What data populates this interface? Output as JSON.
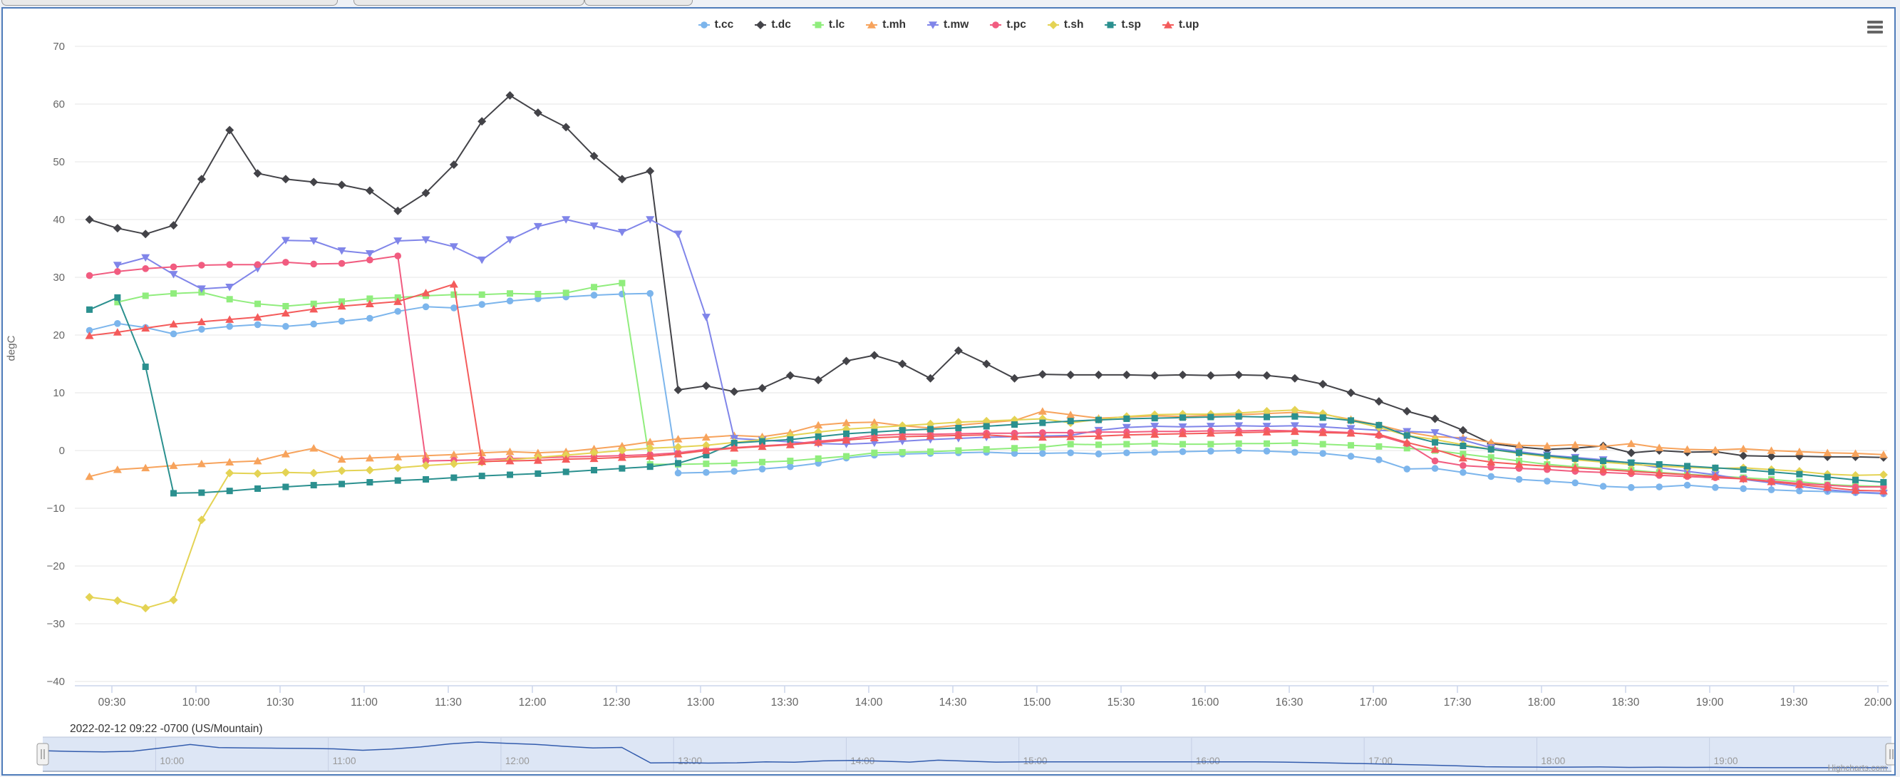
{
  "chart_data": {
    "type": "line",
    "title": "",
    "subtitle": "2022-02-12 09:22 -0700 (US/Mountain)",
    "ylabel": "degC",
    "xlabel": "",
    "credit": "Highcharts.com",
    "legend_position": "top",
    "grid": "horizontal",
    "ylim": [
      -43,
      73
    ],
    "yticks": [
      70,
      60,
      50,
      40,
      30,
      20,
      10,
      0,
      -10,
      -20,
      -30,
      -40
    ],
    "xticks": [
      "09:30",
      "10:00",
      "10:30",
      "11:00",
      "11:30",
      "12:00",
      "12:30",
      "13:00",
      "13:30",
      "14:00",
      "14:30",
      "15:00",
      "15:30",
      "16:00",
      "16:30",
      "17:00",
      "17:30",
      "18:00",
      "18:30",
      "19:00",
      "19:30",
      "20:00"
    ],
    "navigator_labels": [
      "10:00",
      "11:00",
      "12:00",
      "13:00",
      "14:00",
      "15:00",
      "16:00",
      "17:00",
      "18:00",
      "19:00"
    ],
    "x": [
      "09:22",
      "09:32",
      "09:42",
      "09:52",
      "10:02",
      "10:12",
      "10:22",
      "10:32",
      "10:42",
      "10:52",
      "11:02",
      "11:12",
      "11:22",
      "11:32",
      "11:42",
      "11:52",
      "12:02",
      "12:12",
      "12:22",
      "12:32",
      "12:42",
      "12:52",
      "13:02",
      "13:12",
      "13:22",
      "13:32",
      "13:42",
      "13:52",
      "14:02",
      "14:12",
      "14:22",
      "14:32",
      "14:42",
      "14:52",
      "15:02",
      "15:12",
      "15:22",
      "15:32",
      "15:42",
      "15:52",
      "16:02",
      "16:12",
      "16:22",
      "16:32",
      "16:42",
      "16:52",
      "17:02",
      "17:12",
      "17:22",
      "17:32",
      "17:42",
      "17:52",
      "18:02",
      "18:12",
      "18:22",
      "18:32",
      "18:42",
      "18:52",
      "19:02",
      "19:12",
      "19:22",
      "19:32",
      "19:42",
      "19:52",
      "20:02"
    ],
    "series": [
      {
        "name": "t.cc",
        "color": "#7cb5ec",
        "marker": "circle",
        "values": [
          20.8,
          22,
          21.3,
          20.2,
          21,
          21.5,
          21.8,
          21.5,
          21.9,
          22.4,
          22.9,
          24.1,
          24.9,
          24.7,
          25.3,
          25.9,
          26.3,
          26.6,
          26.9,
          27.1,
          27.2,
          -3.9,
          -3.8,
          -3.6,
          -3.2,
          -2.8,
          -2.2,
          -1.3,
          -0.8,
          -0.6,
          -0.5,
          -0.4,
          -0.3,
          -0.5,
          -0.5,
          -0.4,
          -0.6,
          -0.4,
          -0.3,
          -0.2,
          -0.1,
          0,
          -0.1,
          -0.3,
          -0.5,
          -1,
          -1.6,
          -3.2,
          -3.1,
          -3.8,
          -4.5,
          -5,
          -5.3,
          -5.6,
          -6.2,
          -6.4,
          -6.3,
          -6,
          -6.4,
          -6.6,
          -6.8,
          -7,
          -7.1,
          -7.3,
          -7.5
        ]
      },
      {
        "name": "t.dc",
        "color": "#434348",
        "marker": "diamond",
        "values": [
          40,
          38.5,
          37.5,
          39,
          47,
          55.5,
          48,
          47,
          46.5,
          46,
          45,
          41.5,
          44.6,
          49.5,
          57,
          61.5,
          58.5,
          56,
          51,
          47,
          48.4,
          10.5,
          11.2,
          10.2,
          10.8,
          13,
          12.2,
          15.5,
          16.5,
          15,
          12.5,
          17.3,
          15,
          12.5,
          13.2,
          13.1,
          13.1,
          13.1,
          13,
          13.1,
          13,
          13.1,
          13,
          12.5,
          11.5,
          10,
          8.5,
          6.8,
          5.5,
          3.5,
          1.2,
          0.6,
          0.2,
          0.4,
          0.8,
          -0.4,
          0,
          -0.3,
          -0.2,
          -0.9,
          -1,
          -1,
          -1.1,
          -1.1,
          -1.2
        ]
      },
      {
        "name": "t.lc",
        "color": "#90ed7d",
        "marker": "square",
        "values": [
          null,
          25.7,
          26.8,
          27.2,
          27.4,
          26.2,
          25.4,
          25,
          25.4,
          25.8,
          26.3,
          26.5,
          26.8,
          27,
          27,
          27.2,
          27.1,
          27.3,
          28.3,
          29,
          -2.4,
          -2.4,
          -2.3,
          -2.2,
          -2,
          -1.8,
          -1.4,
          -1,
          -0.4,
          -0.3,
          -0.2,
          0,
          0.2,
          0.4,
          0.6,
          1.1,
          1,
          1.1,
          1.2,
          1.1,
          1.1,
          1.2,
          1.2,
          1.3,
          1.1,
          0.9,
          0.7,
          0.4,
          0,
          -0.6,
          -1.2,
          -1.8,
          -2.4,
          -2.8,
          -3.1,
          -3.4,
          -3.8,
          -4.1,
          -4.4,
          -4.7,
          -5,
          -5.4,
          -5.9,
          -6.1,
          -6.2
        ]
      },
      {
        "name": "t.mh",
        "color": "#f7a35c",
        "marker": "triangle",
        "values": [
          -4.5,
          -3.3,
          -3,
          -2.6,
          -2.3,
          -2,
          -1.8,
          -0.6,
          0.4,
          -1.5,
          -1.3,
          -1.1,
          -0.9,
          -0.7,
          -0.4,
          -0.2,
          -0.4,
          -0.2,
          0.3,
          0.8,
          1.5,
          2,
          2.3,
          2.6,
          2.4,
          3.1,
          4.4,
          4.8,
          4.9,
          4.3,
          3.9,
          4.4,
          4.8,
          5.2,
          6.8,
          6.2,
          5.6,
          5.8,
          6,
          5.9,
          6.1,
          6.2,
          6.4,
          6.6,
          6.3,
          5.4,
          4.4,
          3.2,
          2.4,
          2.2,
          1.4,
          0.9,
          0.8,
          1,
          0.7,
          1.2,
          0.5,
          0.2,
          0.1,
          0.3,
          0,
          -0.2,
          -0.4,
          -0.5,
          -0.7
        ]
      },
      {
        "name": "t.mw",
        "color": "#8085e9",
        "marker": "triangle-down",
        "values": [
          null,
          32.1,
          33.4,
          30.5,
          28,
          28.3,
          31.5,
          36.4,
          36.3,
          34.6,
          34.1,
          36.3,
          36.5,
          35.3,
          33,
          36.5,
          38.8,
          40,
          38.9,
          37.8,
          40,
          37.5,
          23.1,
          2.1,
          1.8,
          1.5,
          1.2,
          1.1,
          1.3,
          1.6,
          1.9,
          2.1,
          2.3,
          2.4,
          2.5,
          2.6,
          3.5,
          4,
          4.2,
          4.1,
          4.2,
          4.3,
          4.2,
          4.3,
          4.1,
          3.8,
          3.5,
          3.3,
          3.1,
          1.8,
          0.5,
          -0.2,
          -0.8,
          -1.2,
          -1.6,
          -2.2,
          -3,
          -3.6,
          -4.2,
          -5,
          -5.6,
          -6.2,
          -6.8,
          -7.2,
          -7.4
        ]
      },
      {
        "name": "t.pc",
        "color": "#f15c80",
        "marker": "circle",
        "values": [
          30.3,
          31,
          31.5,
          31.8,
          32.1,
          32.2,
          32.2,
          32.6,
          32.3,
          32.4,
          33,
          33.7,
          -1.8,
          -1.7,
          -1.6,
          -1.4,
          -1.3,
          -1.1,
          -1,
          -0.9,
          -0.7,
          -0.4,
          0.2,
          0.5,
          0.8,
          1.1,
          1.6,
          2,
          2.6,
          2.8,
          2.8,
          2.9,
          3,
          3,
          3.1,
          3.1,
          3.2,
          3.2,
          3.3,
          3.3,
          3.4,
          3.4,
          3.5,
          3.4,
          3.3,
          3.1,
          2.6,
          1.2,
          -1.8,
          -2.6,
          -2.9,
          -3.1,
          -3.3,
          -3.6,
          -3.8,
          -4,
          -4.3,
          -4.5,
          -4.7,
          -4.9,
          -5.3,
          -5.7,
          -6,
          -6.3,
          -6.3
        ]
      },
      {
        "name": "t.sh",
        "color": "#e4d354",
        "marker": "diamond",
        "values": [
          -25.4,
          -26,
          -27.3,
          -25.9,
          -12,
          -3.9,
          -4,
          -3.8,
          -3.9,
          -3.5,
          -3.4,
          -3,
          -2.6,
          -2.3,
          -2,
          -1.6,
          -1.2,
          -0.8,
          -0.4,
          0,
          0.4,
          0.6,
          0.9,
          1.4,
          1.9,
          2.6,
          3.2,
          3.7,
          4,
          4.3,
          4.6,
          4.9,
          5.1,
          5.3,
          5.5,
          4.8,
          5.4,
          5.9,
          6.2,
          6.3,
          6.3,
          6.5,
          6.8,
          7,
          6.4,
          5.2,
          4,
          2.6,
          1.9,
          1,
          0.2,
          -0.5,
          -1.1,
          -1.6,
          -2,
          -2.4,
          -2.7,
          -2.9,
          -3.1,
          -3,
          -3.3,
          -3.6,
          -4.1,
          -4.3,
          -4.2
        ]
      },
      {
        "name": "t.sp",
        "color": "#2b908f",
        "marker": "square",
        "values": [
          24.4,
          26.5,
          14.5,
          -7.4,
          -7.3,
          -7,
          -6.6,
          -6.3,
          -6,
          -5.8,
          -5.5,
          -5.2,
          -5,
          -4.7,
          -4.4,
          -4.2,
          -4,
          -3.7,
          -3.4,
          -3.1,
          -2.8,
          -2.2,
          -0.8,
          1.3,
          1.6,
          1.9,
          2.4,
          2.9,
          3.2,
          3.5,
          3.7,
          3.9,
          4.2,
          4.5,
          4.8,
          5.1,
          5.3,
          5.5,
          5.6,
          5.7,
          5.8,
          5.9,
          5.8,
          5.9,
          5.7,
          5.2,
          4.4,
          2.6,
          1.4,
          0.8,
          0.2,
          -0.4,
          -0.9,
          -1.4,
          -1.8,
          -2.1,
          -2.4,
          -2.7,
          -3,
          -3.3,
          -3.7,
          -4.1,
          -4.6,
          -5.1,
          -5.5
        ]
      },
      {
        "name": "t.up",
        "color": "#f45b5b",
        "marker": "triangle",
        "values": [
          19.9,
          20.5,
          21.2,
          21.9,
          22.3,
          22.7,
          23.1,
          23.8,
          24.5,
          25,
          25.4,
          25.8,
          27.3,
          28.8,
          -1.9,
          -1.8,
          -1.7,
          -1.5,
          -1.4,
          -1.2,
          -1,
          -0.6,
          0,
          0.4,
          0.7,
          1,
          1.4,
          1.8,
          2.2,
          2.4,
          2.5,
          2.6,
          2.7,
          2.4,
          2.3,
          2.4,
          2.5,
          2.7,
          2.8,
          2.9,
          3,
          3.1,
          3.2,
          3.3,
          3.1,
          3,
          2.8,
          1.4,
          0.2,
          -1.3,
          -2,
          -2.4,
          -2.7,
          -3,
          -3.3,
          -3.6,
          -3.9,
          -4.2,
          -4.5,
          -4.9,
          -5.4,
          -5.9,
          -6.4,
          -6.9,
          -7
        ]
      }
    ]
  }
}
